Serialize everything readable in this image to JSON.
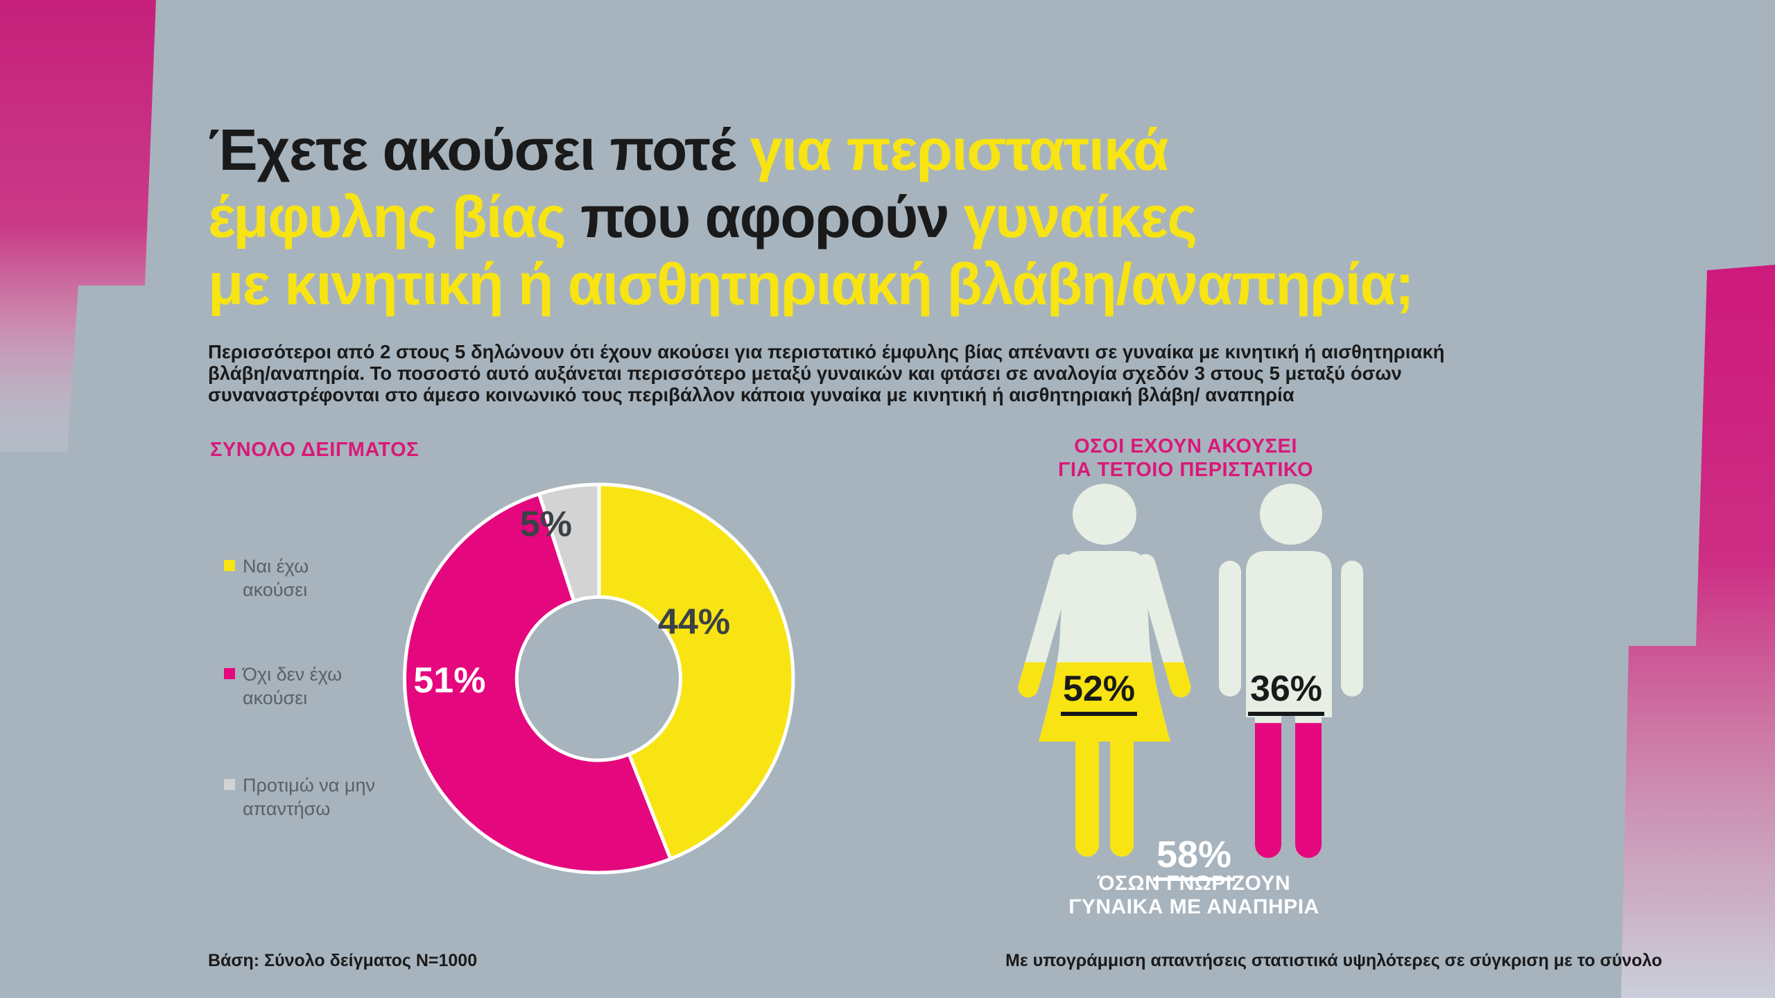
{
  "colors": {
    "background": "#a7b4be",
    "yellow": "#f8e412",
    "magenta": "#e5077d",
    "gray": "#d3d3d4",
    "figure": "#e7eee4",
    "dark": "#1a1a1a",
    "label_dark": "#3b4147",
    "legend_text": "#5a6066",
    "heading_magenta": "#da1878",
    "white": "#ffffff"
  },
  "title": {
    "segments": [
      {
        "text": "Έχετε ακούσει ποτέ ",
        "color": "dark"
      },
      {
        "text": "για περιστατικά\n",
        "color": "yellow"
      },
      {
        "text": "έμφυλης βίας ",
        "color": "yellow"
      },
      {
        "text": "που αφορούν ",
        "color": "dark"
      },
      {
        "text": "γυναίκες\n",
        "color": "yellow"
      },
      {
        "text": "με κινητική ή αισθητηριακή βλάβη/αναπηρία;",
        "color": "yellow"
      }
    ]
  },
  "subtitle": "Περισσότεροι από 2 στους 5 δηλώνουν ότι έχουν ακούσει για περιστατικό έμφυλης βίας απέναντι σε γυναίκα με κινητική ή αισθητηριακή\nβλάβη/αναπηρία. Το ποσοστό αυτό αυξάνεται περισσότερο μεταξύ γυναικών και φτάσει σε αναλογία σχεδόν 3 στους 5 μεταξύ όσων\nσυναναστρέφονται στο άμεσο κοινωνικό τους περιβάλλον κάποια γυναίκα με κινητική ή αισθητηριακή βλάβη/ αναπηρία",
  "chart_data": [
    {
      "type": "pie",
      "hole": 0.42,
      "title": "ΣΥΝΟΛΟ ΔΕΙΓΜΑΤΟΣ",
      "labels": [
        "Ναι έχω ακούσει",
        "Όχι δεν έχω ακούσει",
        "Προτιμώ να μην απαντήσω"
      ],
      "values": [
        44,
        51,
        5
      ],
      "value_labels": [
        "44%",
        "51%",
        "5%"
      ],
      "colors": [
        "#f8e412",
        "#e5077d",
        "#d3d3d4"
      ],
      "legend_position": "left",
      "start_angle_deg": 0,
      "direction": "clockwise"
    },
    {
      "type": "pictogram",
      "title": "ΟΣΟΙ ΕΧΟΥΝ ΑΚΟΥΣΕΙ\nΓΙΑ ΤΕΤΟΙΟ ΠΕΡΙΣΤΑΤΙΚΟ",
      "series": [
        {
          "name": "female",
          "value": 52,
          "label": "52%",
          "fill": "#f8e412",
          "underlined": true
        },
        {
          "name": "male",
          "value": 36,
          "label": "36%",
          "fill": "#e5077d",
          "underlined": true
        }
      ],
      "annotation": {
        "value": 58,
        "label": "58%",
        "caption": "ΌΣΩΝ ΓΝΩΡΙΖΟΥΝ\nΓΥΝΑΙΚΑ ΜΕ ΑΝΑΠΗΡΙΑ",
        "underlined": true
      }
    }
  ],
  "legend": {
    "items": [
      {
        "label": "Ναι έχω\nακούσει",
        "color": "#f8e412"
      },
      {
        "label": "Όχι δεν έχω\nακούσει",
        "color": "#e5077d"
      },
      {
        "label": "Προτιμώ να μην\nαπαντήσω",
        "color": "#d3d3d4"
      }
    ]
  },
  "footnotes": {
    "left": "Βάση: Σύνολο δείγματος N=1000",
    "right": "Με υπογράμμιση απαντήσεις στατιστικά υψηλότερες σε σύγκριση με το σύνολο"
  }
}
